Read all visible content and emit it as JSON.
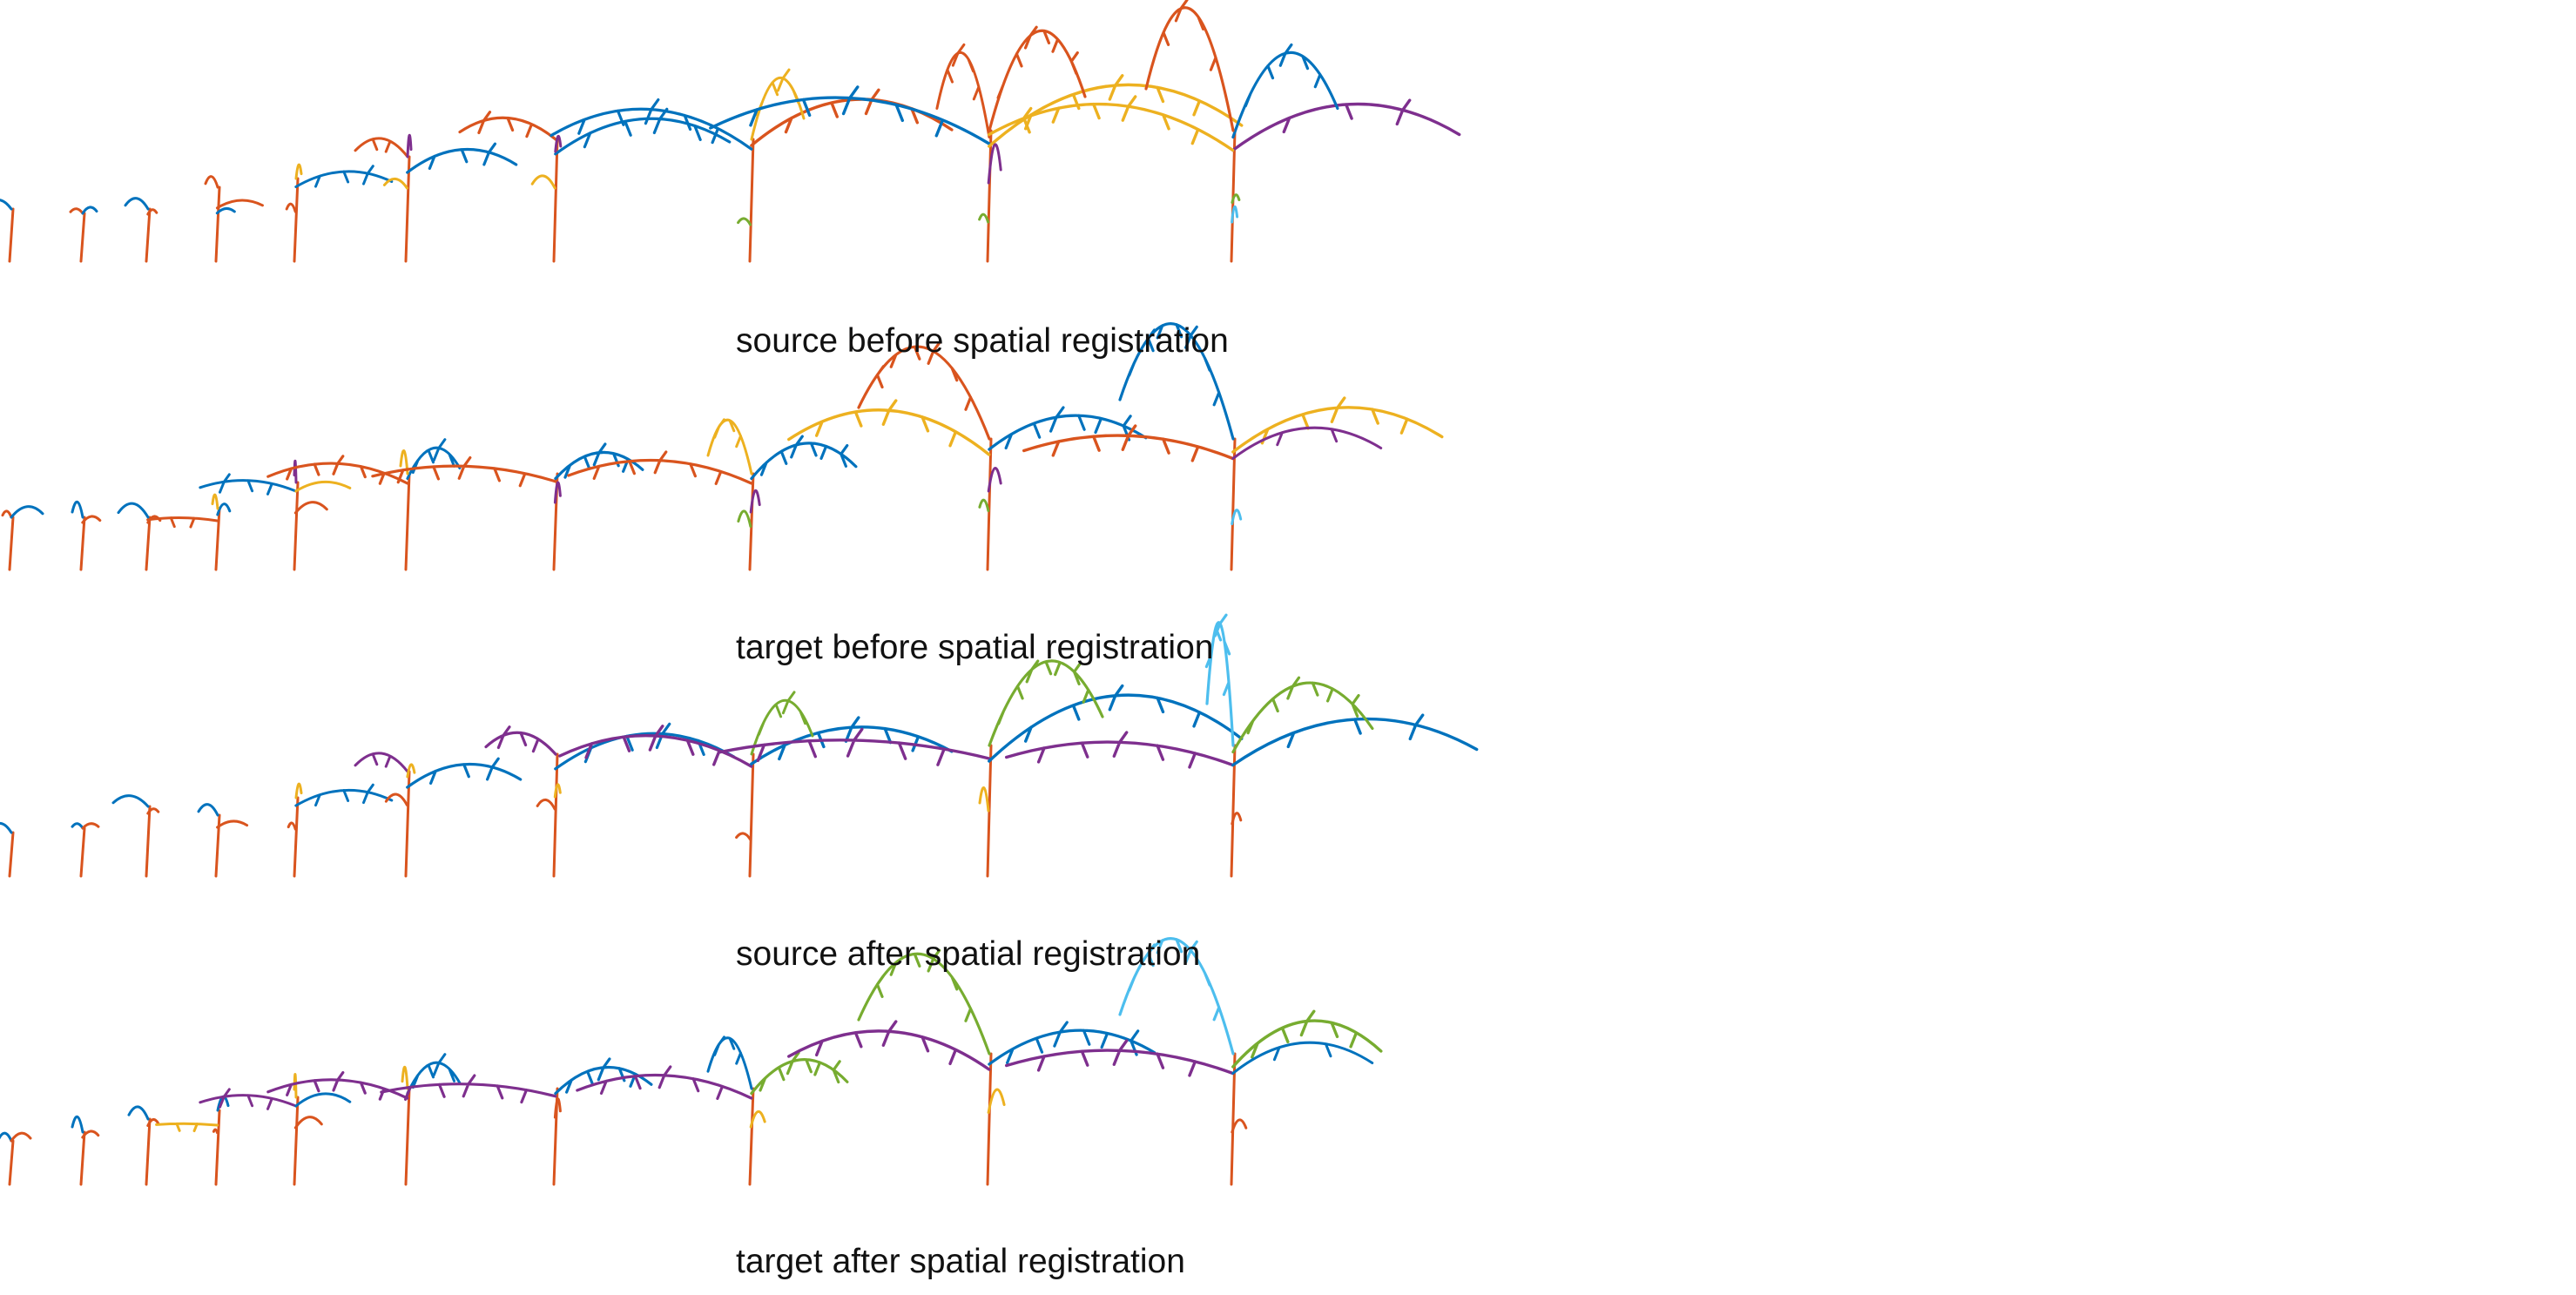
{
  "captions": {
    "row1": "source before spatial registration",
    "row2": "target before spatial registration",
    "row3": "source after spatial registration",
    "row4": "target after spatial registration"
  },
  "colors": {
    "stem": "#d9541e",
    "blue": "#0072bd",
    "yellow": "#edb120",
    "purple": "#7e2f8e",
    "green": "#77ac30",
    "cyan": "#4dbeee"
  }
}
